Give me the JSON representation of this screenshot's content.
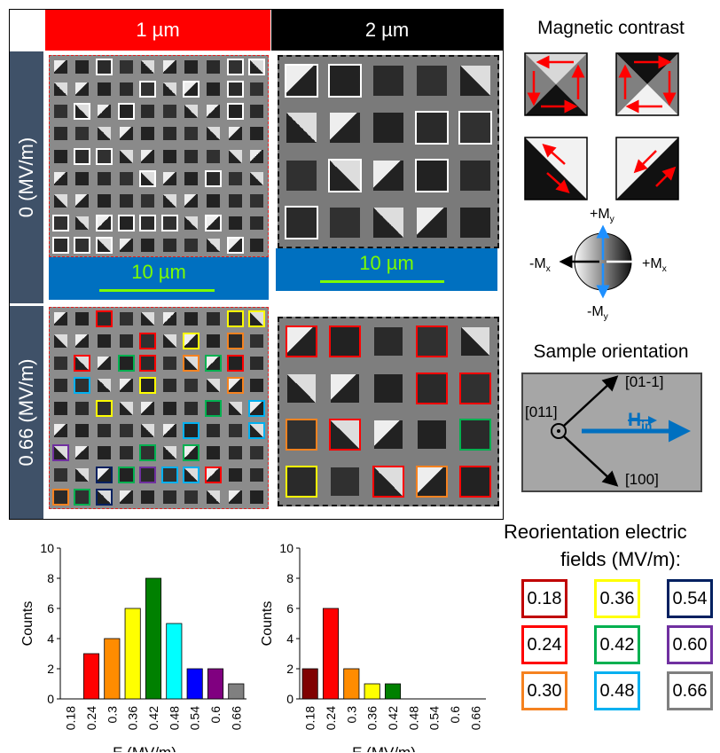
{
  "columns": {
    "col1": "1 µm",
    "col2": "2 µm",
    "col1_color": "#ff0000",
    "col2_color": "#000000"
  },
  "rows": {
    "row1": "0 (MV/m)",
    "row2": "0.66 (MV/m)"
  },
  "scalebars": {
    "left": "10 µm",
    "right": "10 µm"
  },
  "magnetic_contrast": {
    "title": "Magnetic contrast",
    "axes": {
      "up": "+My",
      "down": "-My",
      "left": "-Mx",
      "right": "+Mx"
    }
  },
  "sample_orientation": {
    "title": "Sample orientation",
    "dir_upper": "[01-1]",
    "dir_center": "[011]",
    "dir_lower": "[100]",
    "field": "Hin"
  },
  "reorientation": {
    "title_line1": "Reorientation electric",
    "title_line2": "fields (MV/m):",
    "items": [
      {
        "value": "0.18",
        "color": "#c00000"
      },
      {
        "value": "0.36",
        "color": "#ffff00"
      },
      {
        "value": "0.54",
        "color": "#002060"
      },
      {
        "value": "0.24",
        "color": "#ff0000"
      },
      {
        "value": "0.42",
        "color": "#00b050"
      },
      {
        "value": "0.60",
        "color": "#7030a0"
      },
      {
        "value": "0.30",
        "color": "#f58220"
      },
      {
        "value": "0.48",
        "color": "#00b0f0"
      },
      {
        "value": "0.66",
        "color": "#7f7f7f"
      }
    ]
  },
  "chart_data": [
    {
      "type": "bar",
      "categories": [
        "0.18",
        "0.24",
        "0.3",
        "0.36",
        "0.42",
        "0.48",
        "0.54",
        "0.6",
        "0.66"
      ],
      "values": [
        0,
        3,
        4,
        6,
        8,
        5,
        2,
        2,
        1
      ],
      "colors": [
        "#c00000",
        "#ff0000",
        "#ff8c00",
        "#ffff00",
        "#008000",
        "#00ffff",
        "#0000ff",
        "#800080",
        "#808080"
      ],
      "xlabel": "E (MV/m)",
      "ylabel": "Counts",
      "ylim": [
        0,
        10
      ],
      "yticks": [
        "0",
        "2",
        "4",
        "6",
        "8",
        "10"
      ]
    },
    {
      "type": "bar",
      "categories": [
        "0.18",
        "0.24",
        "0.3",
        "0.36",
        "0.42",
        "0.48",
        "0.54",
        "0.6",
        "0.66"
      ],
      "values": [
        2,
        6,
        2,
        1,
        1,
        0,
        0,
        0,
        0
      ],
      "colors": [
        "#800000",
        "#ff0000",
        "#ff8c00",
        "#ffff00",
        "#008000",
        "#00ffff",
        "#0000ff",
        "#800080",
        "#808080"
      ],
      "xlabel": "E (MV/m)",
      "ylabel": "Counts",
      "ylim": [
        0,
        10
      ],
      "yticks": [
        "0",
        "2",
        "4",
        "6",
        "8",
        "10"
      ]
    }
  ]
}
